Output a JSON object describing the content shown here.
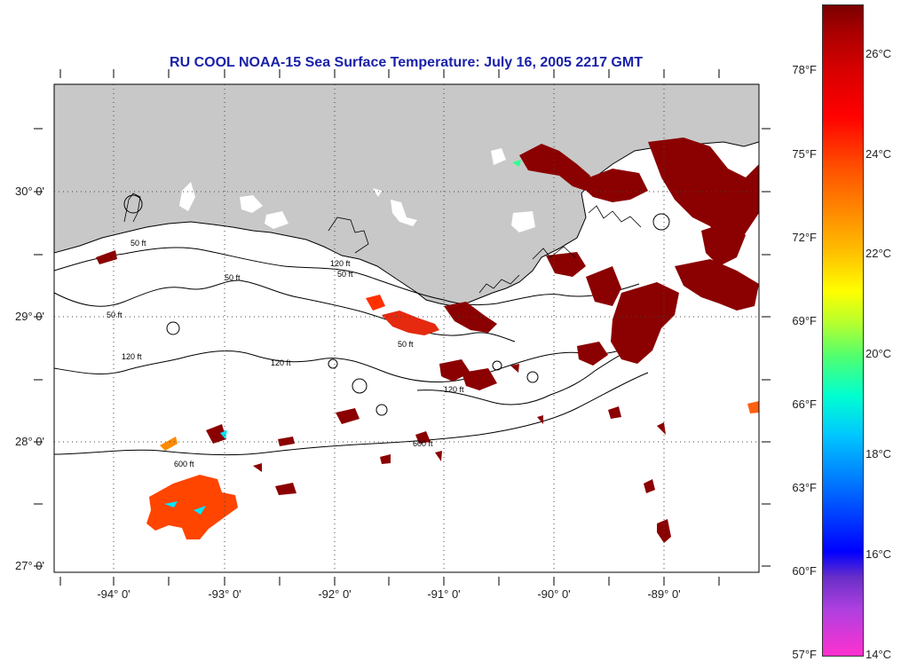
{
  "title": "RU COOL  NOAA-15  Sea Surface Temperature:  July 16, 2005 2217 GMT",
  "latitude_labels": [
    "30° 0'",
    "29° 0'",
    "28° 0'",
    "27° 0'"
  ],
  "longitude_labels": [
    "-94° 0'",
    "-93° 0'",
    "-92° 0'",
    "-91° 0'",
    "-90° 0'",
    "-89° 0'"
  ],
  "contour_labels": {
    "c50a": "50 ft",
    "c50b": "50 ft",
    "c50c": "50 ft",
    "c50d": "50 ft",
    "c50e": "50 ft",
    "c120a": "120 ft",
    "c120b": "120 ft",
    "c120c": "120 ft",
    "c120d": "120 ft",
    "c600a": "600 ft",
    "c600b": "600 ft"
  },
  "colorbar": {
    "fahrenheit_labels": [
      "78°F",
      "75°F",
      "72°F",
      "69°F",
      "66°F",
      "63°F",
      "60°F",
      "57°F"
    ],
    "celsius_labels": [
      "26°C",
      "24°C",
      "22°C",
      "20°C",
      "18°C",
      "16°C",
      "14°C"
    ]
  },
  "colors": {
    "land": "#c8c8c8",
    "ocean": "#ffffff",
    "title": "#1a22a8",
    "sst_warm": "#8b0000",
    "sst_mid": "#ff4500",
    "sst_cool": "#00e5ff"
  }
}
